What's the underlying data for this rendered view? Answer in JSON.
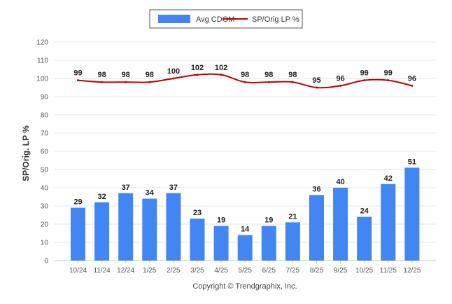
{
  "chart_data": {
    "type": "bar",
    "title": "",
    "xlabel": "",
    "ylabel": "SP/Orig. LP %",
    "ylim": [
      0,
      120
    ],
    "yticks": [
      "0",
      "10",
      "20",
      "30",
      "40",
      "50",
      "60",
      "70",
      "80",
      "90",
      "100",
      "110",
      "120"
    ],
    "grid": true,
    "legend_position": "top-center",
    "categories": [
      "10/24",
      "11/24",
      "12/24",
      "1/25",
      "2/25",
      "3/25",
      "4/25",
      "5/25",
      "6/25",
      "7/25",
      "8/25",
      "9/25",
      "10/25",
      "11/25",
      "12/25"
    ],
    "series": [
      {
        "name": "Avg CDOM",
        "type": "bar",
        "color": "#4286F4",
        "values": [
          29,
          32,
          37,
          34,
          37,
          23,
          19,
          14,
          19,
          21,
          36,
          40,
          24,
          42,
          51
        ]
      },
      {
        "name": "SP/Orig LP %",
        "type": "line",
        "color": "#C00000",
        "values": [
          99,
          98,
          98,
          98,
          100,
          102,
          102,
          98,
          98,
          98,
          95,
          96,
          99,
          99,
          96
        ]
      }
    ]
  },
  "footer": {
    "copyright": "Copyright © Trendgraphix, Inc."
  }
}
